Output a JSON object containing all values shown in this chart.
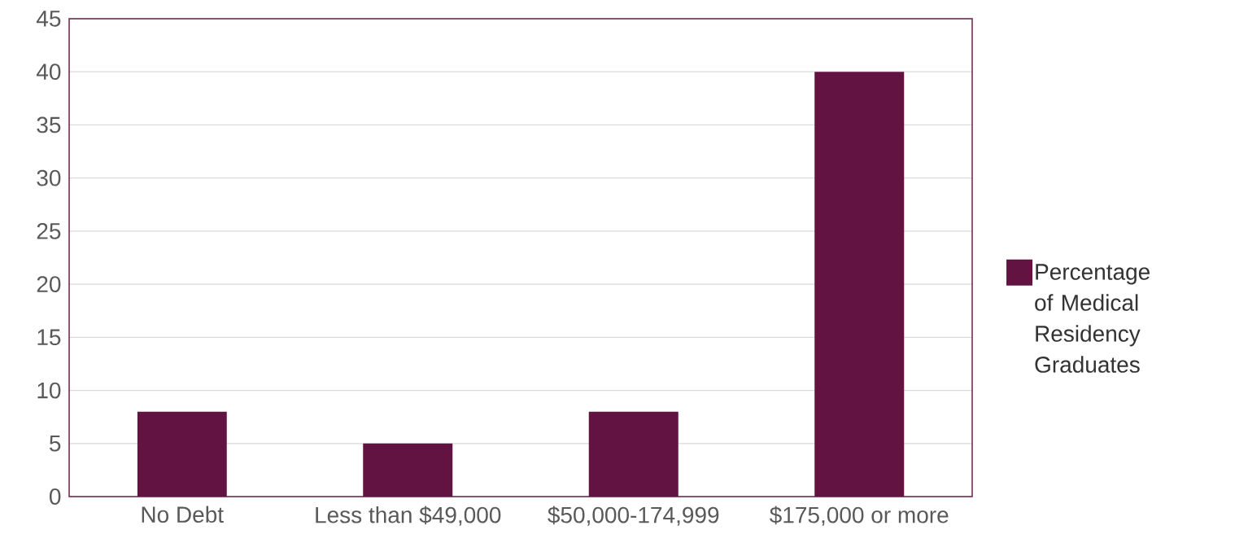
{
  "chart_data": {
    "type": "bar",
    "categories": [
      "No Debt",
      "Less than $49,000",
      "$50,000-174,999",
      "$175,000 or more"
    ],
    "series": [
      {
        "name": "Percentage of Medical Residency Graduates",
        "color": "#621342",
        "values": [
          8,
          5,
          8,
          40
        ]
      }
    ],
    "ylim": [
      0,
      45
    ],
    "yticks": [
      0,
      5,
      10,
      15,
      20,
      25,
      30,
      35,
      40,
      45
    ],
    "grid": "y",
    "legend": "right"
  }
}
